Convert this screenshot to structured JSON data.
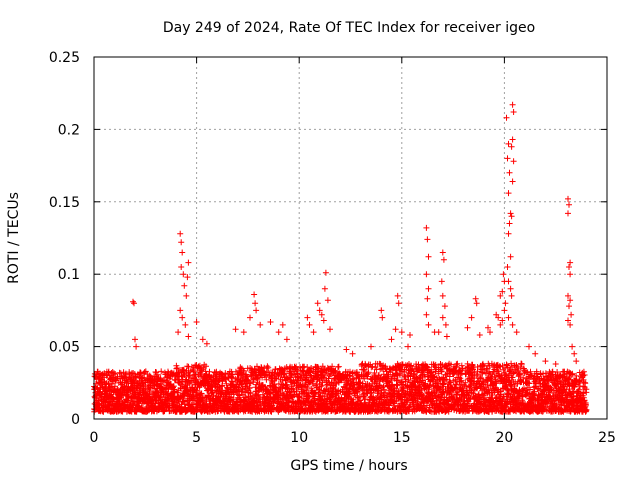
{
  "chart_data": {
    "type": "scatter",
    "title": "Day 249 of 2024, Rate Of TEC Index for receiver igeo",
    "xlabel": "GPS time / hours",
    "ylabel": "ROTI / TECUs",
    "xlim": [
      0,
      25
    ],
    "ylim": [
      0,
      0.25
    ],
    "xticks": [
      0,
      5,
      10,
      15,
      20,
      25
    ],
    "xtick_labels": [
      "0",
      "5",
      "10",
      "15",
      "20",
      "25"
    ],
    "yticks": [
      0,
      0.05,
      0.1,
      0.15,
      0.2,
      0.25
    ],
    "ytick_labels": [
      "0",
      "0.05",
      "0.1",
      "0.15",
      "0.2",
      "0.25"
    ],
    "grid": true,
    "marker": "+",
    "series_color": "#ff0000",
    "series": [
      {
        "name": "ROTI",
        "baseline_band": {
          "x_range": [
            0,
            24
          ],
          "y_min": 0.005,
          "y_typical_max": 0.035,
          "sample_step_hours": 0.02
        },
        "points": [
          [
            1.9,
            0.081
          ],
          [
            1.95,
            0.08
          ],
          [
            2.0,
            0.055
          ],
          [
            2.05,
            0.05
          ],
          [
            4.2,
            0.128
          ],
          [
            4.25,
            0.122
          ],
          [
            4.3,
            0.115
          ],
          [
            4.25,
            0.105
          ],
          [
            4.35,
            0.1
          ],
          [
            4.4,
            0.092
          ],
          [
            4.5,
            0.085
          ],
          [
            4.2,
            0.075
          ],
          [
            4.3,
            0.07
          ],
          [
            4.45,
            0.065
          ],
          [
            4.6,
            0.108
          ],
          [
            4.55,
            0.098
          ],
          [
            4.1,
            0.06
          ],
          [
            4.6,
            0.057
          ],
          [
            5.0,
            0.067
          ],
          [
            5.3,
            0.055
          ],
          [
            5.5,
            0.052
          ],
          [
            6.9,
            0.062
          ],
          [
            7.3,
            0.06
          ],
          [
            7.6,
            0.07
          ],
          [
            7.8,
            0.086
          ],
          [
            7.85,
            0.08
          ],
          [
            7.9,
            0.075
          ],
          [
            8.1,
            0.065
          ],
          [
            8.6,
            0.067
          ],
          [
            9.0,
            0.06
          ],
          [
            9.4,
            0.055
          ],
          [
            9.2,
            0.065
          ],
          [
            10.4,
            0.07
          ],
          [
            10.5,
            0.065
          ],
          [
            10.7,
            0.06
          ],
          [
            10.9,
            0.08
          ],
          [
            11.0,
            0.075
          ],
          [
            11.1,
            0.072
          ],
          [
            11.2,
            0.068
          ],
          [
            11.3,
            0.101
          ],
          [
            11.25,
            0.09
          ],
          [
            11.4,
            0.082
          ],
          [
            11.5,
            0.062
          ],
          [
            12.3,
            0.048
          ],
          [
            12.6,
            0.045
          ],
          [
            13.5,
            0.05
          ],
          [
            14.0,
            0.075
          ],
          [
            14.05,
            0.07
          ],
          [
            14.5,
            0.055
          ],
          [
            14.7,
            0.062
          ],
          [
            14.8,
            0.085
          ],
          [
            14.85,
            0.08
          ],
          [
            15.0,
            0.06
          ],
          [
            15.3,
            0.05
          ],
          [
            15.4,
            0.058
          ],
          [
            16.2,
            0.132
          ],
          [
            16.25,
            0.124
          ],
          [
            16.3,
            0.112
          ],
          [
            16.2,
            0.1
          ],
          [
            16.3,
            0.09
          ],
          [
            16.25,
            0.083
          ],
          [
            16.2,
            0.072
          ],
          [
            16.3,
            0.065
          ],
          [
            16.6,
            0.06
          ],
          [
            16.8,
            0.06
          ],
          [
            17.0,
            0.115
          ],
          [
            17.05,
            0.11
          ],
          [
            16.95,
            0.095
          ],
          [
            17.0,
            0.085
          ],
          [
            17.1,
            0.078
          ],
          [
            17.0,
            0.07
          ],
          [
            17.15,
            0.065
          ],
          [
            17.2,
            0.057
          ],
          [
            18.2,
            0.063
          ],
          [
            18.4,
            0.07
          ],
          [
            18.6,
            0.083
          ],
          [
            18.65,
            0.08
          ],
          [
            18.8,
            0.058
          ],
          [
            19.2,
            0.063
          ],
          [
            19.3,
            0.06
          ],
          [
            19.6,
            0.072
          ],
          [
            19.7,
            0.07
          ],
          [
            19.8,
            0.065
          ],
          [
            19.9,
            0.068
          ],
          [
            19.95,
            0.1
          ],
          [
            20.0,
            0.095
          ],
          [
            19.9,
            0.088
          ],
          [
            20.05,
            0.08
          ],
          [
            20.0,
            0.075
          ],
          [
            19.8,
            0.085
          ],
          [
            20.1,
            0.208
          ],
          [
            20.2,
            0.19
          ],
          [
            20.15,
            0.18
          ],
          [
            20.25,
            0.17
          ],
          [
            20.2,
            0.156
          ],
          [
            20.3,
            0.142
          ],
          [
            20.25,
            0.135
          ],
          [
            20.2,
            0.128
          ],
          [
            20.3,
            0.112
          ],
          [
            20.15,
            0.105
          ],
          [
            20.2,
            0.095
          ],
          [
            20.3,
            0.09
          ],
          [
            20.35,
            0.085
          ],
          [
            20.4,
            0.217
          ],
          [
            20.45,
            0.212
          ],
          [
            20.4,
            0.193
          ],
          [
            20.35,
            0.188
          ],
          [
            20.45,
            0.178
          ],
          [
            20.4,
            0.164
          ],
          [
            20.35,
            0.14
          ],
          [
            20.2,
            0.07
          ],
          [
            20.4,
            0.065
          ],
          [
            20.6,
            0.06
          ],
          [
            21.2,
            0.05
          ],
          [
            21.5,
            0.045
          ],
          [
            22.0,
            0.04
          ],
          [
            22.5,
            0.038
          ],
          [
            23.1,
            0.152
          ],
          [
            23.15,
            0.148
          ],
          [
            23.1,
            0.142
          ],
          [
            23.2,
            0.108
          ],
          [
            23.15,
            0.105
          ],
          [
            23.2,
            0.1
          ],
          [
            23.1,
            0.085
          ],
          [
            23.2,
            0.082
          ],
          [
            23.15,
            0.078
          ],
          [
            23.25,
            0.072
          ],
          [
            23.1,
            0.068
          ],
          [
            23.2,
            0.065
          ],
          [
            23.3,
            0.05
          ],
          [
            23.4,
            0.045
          ],
          [
            23.5,
            0.04
          ]
        ]
      }
    ]
  }
}
